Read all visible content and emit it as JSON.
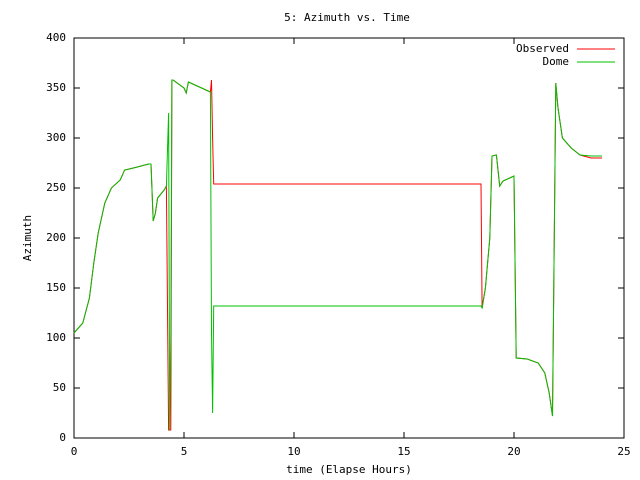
{
  "chart_data": {
    "type": "line",
    "title": "5: Azimuth vs. Time",
    "x_label": "time (Elapse Hours)",
    "y_label": "Azimuth",
    "x": [
      0,
      0.4,
      0.7,
      0.9,
      1.1,
      1.4,
      1.7,
      2.1,
      2.3,
      2.7,
      3.4,
      3.5,
      3.6,
      3.7,
      3.8,
      4.1,
      4.2,
      4.3,
      4.35,
      4.4,
      4.45,
      4.5,
      5.0,
      5.1,
      5.2,
      5.6,
      6.0,
      6.2,
      6.25,
      6.3,
      6.35,
      6.4,
      18.5,
      18.55,
      18.7,
      18.9,
      19.0,
      19.2,
      19.35,
      19.5,
      19.8,
      20.0,
      20.1,
      20.6,
      21.1,
      21.4,
      21.6,
      21.75,
      21.9,
      22.0,
      22.2,
      22.6,
      23.0,
      23.5,
      24.0
    ],
    "series": [
      {
        "name": "Observed",
        "color": "#ff0000",
        "values": [
          105,
          115,
          140,
          175,
          205,
          235,
          250,
          258,
          268,
          270,
          274,
          274,
          217,
          225,
          240,
          248,
          252,
          8,
          8,
          8,
          358,
          358,
          350,
          345,
          356,
          352,
          348,
          346,
          358,
          300,
          254,
          254,
          254,
          130,
          150,
          200,
          282,
          283,
          252,
          257,
          260,
          262,
          80,
          79,
          75,
          65,
          45,
          22,
          355,
          330,
          300,
          290,
          283,
          280,
          280
        ]
      },
      {
        "name": "Dome",
        "color": "#00c000",
        "values": [
          105,
          115,
          140,
          175,
          205,
          235,
          250,
          258,
          268,
          270,
          274,
          274,
          217,
          225,
          240,
          248,
          252,
          325,
          8,
          100,
          358,
          358,
          350,
          345,
          356,
          352,
          348,
          346,
          105,
          25,
          132,
          132,
          132,
          130,
          150,
          200,
          282,
          283,
          252,
          257,
          260,
          262,
          80,
          79,
          75,
          65,
          45,
          22,
          355,
          330,
          300,
          290,
          283,
          282,
          282
        ]
      }
    ],
    "xlim": [
      0,
      25
    ],
    "xticks": [
      0,
      5,
      10,
      15,
      20,
      25
    ],
    "ylim": [
      0,
      400
    ],
    "yticks": [
      0,
      50,
      100,
      150,
      200,
      250,
      300,
      350,
      400
    ],
    "legend": "top-right"
  }
}
